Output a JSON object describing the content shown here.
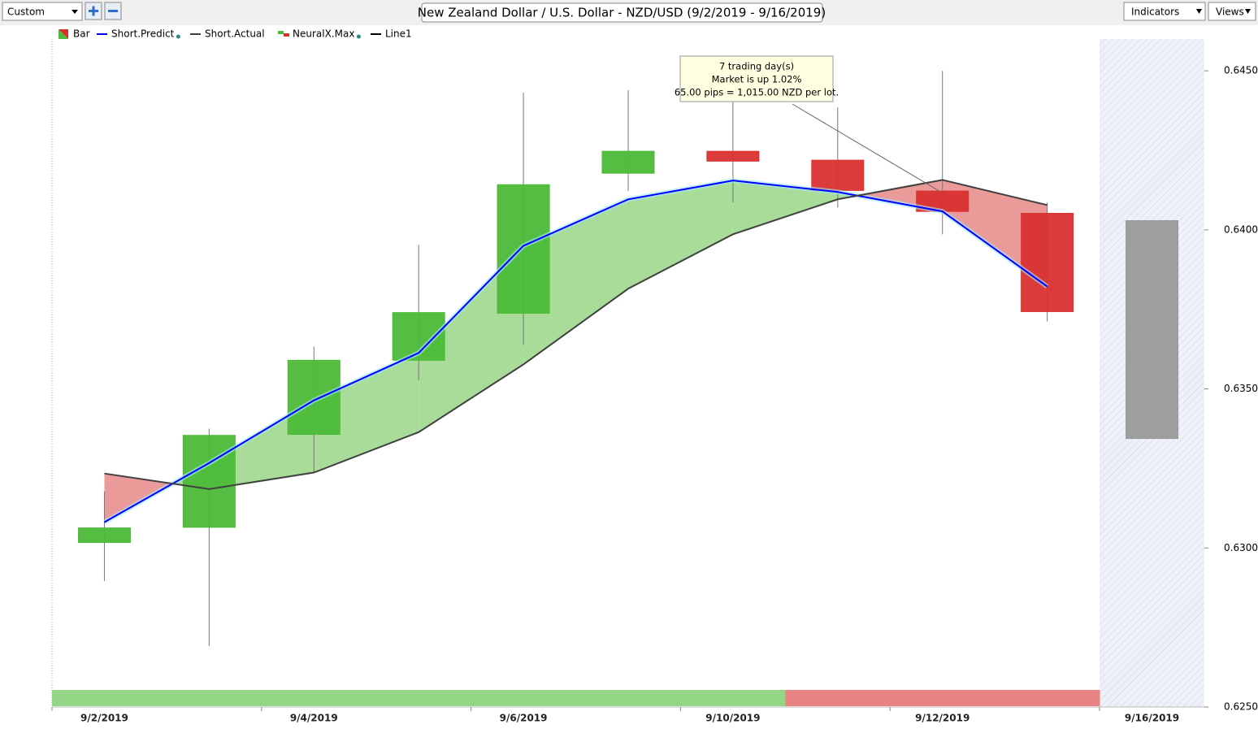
{
  "toolbar": {
    "preset": "Custom",
    "indicators": "Indicators",
    "views": "Views"
  },
  "chart_data": {
    "type": "candlestick",
    "title": "New Zealand Dollar / U.S. Dollar - NZD/USD (9/2/2019 - 9/16/2019)",
    "categories": [
      "9/2/2019",
      null,
      "9/4/2019",
      null,
      "9/6/2019",
      null,
      "9/10/2019",
      null,
      "9/12/2019",
      null,
      "9/16/2019"
    ],
    "open": [
      0.63017,
      0.63065,
      0.63357,
      0.6359,
      0.63738,
      0.64178,
      0.64247,
      0.64219,
      0.64122,
      0.64052,
      0.64029
    ],
    "high": [
      0.63178,
      0.63375,
      0.63633,
      0.63953,
      0.64431,
      0.64439,
      0.64405,
      0.64385,
      0.645,
      0.64086,
      null
    ],
    "low": [
      0.62896,
      0.62692,
      0.63237,
      0.63528,
      0.63638,
      0.64122,
      0.64086,
      0.6407,
      0.63986,
      0.63712,
      null
    ],
    "close": [
      0.63063,
      0.63354,
      0.6359,
      0.6374,
      0.64142,
      0.64247,
      0.64216,
      0.64124,
      0.64058,
      0.63743,
      0.63344
    ],
    "candle_colors": [
      "#4cbb38",
      "#4cbb38",
      "#4cbb38",
      "#4cbb38",
      "#4cbb38",
      "#4cbb38",
      "#d9302f",
      "#d9302f",
      "#d9302f",
      "#d9302f",
      "#999999"
    ],
    "series": [
      {
        "name": "Short.Predict",
        "color": "#0000ff",
        "values": [
          0.63081,
          0.63267,
          0.63464,
          0.63613,
          0.6395,
          0.64096,
          0.64155,
          0.64119,
          0.64058,
          0.63822,
          null
        ]
      },
      {
        "name": "Short.Actual",
        "color": "#404040",
        "values": [
          0.63234,
          0.63185,
          0.63237,
          0.63364,
          0.63577,
          0.63815,
          0.63986,
          0.64096,
          0.64157,
          0.64078,
          null
        ]
      }
    ],
    "fill_up_color": "#a8dc98",
    "fill_down_color": "#eb9a9a",
    "signal_colors": [
      "#93d685",
      "#93d685",
      "#93d685",
      "#93d685",
      "#93d685",
      "#93d685",
      "#93d685",
      "#e88484",
      "#e88484",
      "#e88484"
    ],
    "legend": [
      "Bar",
      "NeuralX.Max",
      "Line1"
    ],
    "annotation": [
      "7 trading day(s)",
      "Market is up 1.02%",
      "65.00 pips = 1,015.00 NZD per lot."
    ],
    "ylim": [
      0.625,
      0.646
    ],
    "yticks": [
      {
        "value": 0.625,
        "label": "0.6250"
      },
      {
        "value": 0.63,
        "label": "0.6300"
      },
      {
        "value": 0.635,
        "label": "0.6350"
      },
      {
        "value": 0.64,
        "label": "0.6400"
      },
      {
        "value": 0.645,
        "label": "0.6450"
      }
    ]
  }
}
